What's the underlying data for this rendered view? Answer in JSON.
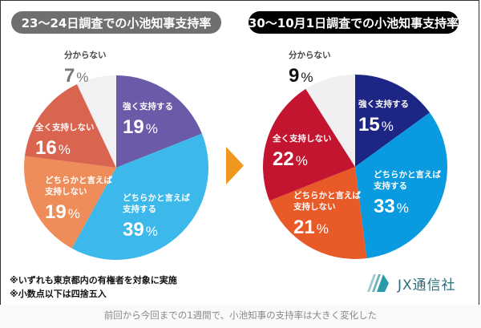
{
  "chart_data": [
    {
      "type": "pie",
      "title": "23〜24日調査での小池知事支持率",
      "start": "top, clockwise",
      "slices": [
        {
          "label": "強く支持する",
          "value": 19,
          "color": "#6a5aa8",
          "text_color": "#ffffff"
        },
        {
          "label": "どちらかと言えば\n支持する",
          "value": 39,
          "color": "#3db8ea",
          "text_color": "#ffffff"
        },
        {
          "label": "どちらかと言えば\n支持しない",
          "value": 19,
          "color": "#ef8d5a",
          "text_color": "#ffffff"
        },
        {
          "label": "全く支持しない",
          "value": 16,
          "color": "#d9644f",
          "text_color": "#ffffff"
        },
        {
          "label": "分からない",
          "value": 7,
          "color": "#f1f0f3",
          "text_color": "#777777"
        }
      ]
    },
    {
      "type": "pie",
      "title": "30〜10月1日調査での小池知事支持率",
      "start": "top, clockwise",
      "slices": [
        {
          "label": "強く支持する",
          "value": 15,
          "color": "#1d2585",
          "text_color": "#ffffff"
        },
        {
          "label": "どちらかと言えば\n支持する",
          "value": 33,
          "color": "#0a9ae0",
          "text_color": "#ffffff"
        },
        {
          "label": "どちらかと言えば\n支持しない",
          "value": 21,
          "color": "#e85a27",
          "text_color": "#ffffff"
        },
        {
          "label": "全く支持しない",
          "value": 22,
          "color": "#c41530",
          "text_color": "#ffffff"
        },
        {
          "label": "分からない",
          "value": 9,
          "color": "#f0f0f2",
          "text_color": "#111111"
        }
      ]
    }
  ],
  "percent_suffix": "%",
  "arrow_color": "#f0981d",
  "notes": [
    "※いずれも東京都内の有権者を対象に実施",
    "※小数点以下は四捨五入"
  ],
  "logo": {
    "text": "JX通信社",
    "color": "#2a6d7a"
  },
  "caption": "前回から今回までの1週間で、小池知事の支持率は大きく変化した"
}
